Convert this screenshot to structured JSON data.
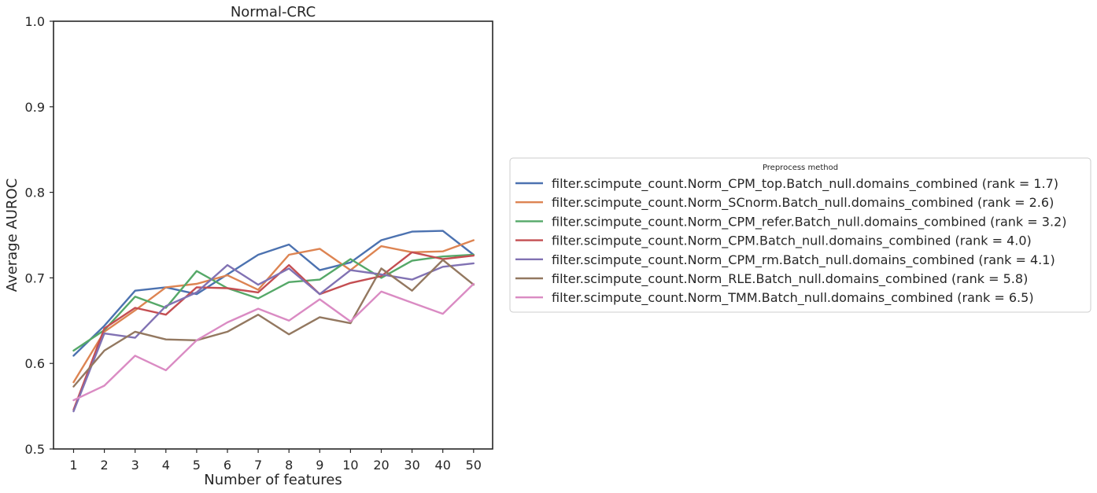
{
  "chart_data": {
    "type": "line",
    "title": "Normal-CRC",
    "xlabel": "Number of features",
    "ylabel": "Average AUROC",
    "categories": [
      "1",
      "2",
      "3",
      "4",
      "5",
      "6",
      "7",
      "8",
      "9",
      "10",
      "20",
      "30",
      "40",
      "50"
    ],
    "ylim": [
      0.5,
      1.0
    ],
    "yticks": [
      "0.5",
      "0.6",
      "0.7",
      "0.8",
      "0.9",
      "1.0"
    ],
    "grid": false,
    "legend": {
      "title": "Preprocess method",
      "placement": "right"
    },
    "series": [
      {
        "name": "filter.scimpute_count.Norm_CPM_top.Batch_null.domains_combined (rank = 1.7)",
        "color": "#4c72b0",
        "values": [
          0.609,
          0.644,
          0.685,
          0.689,
          0.681,
          0.704,
          0.727,
          0.739,
          0.709,
          0.718,
          0.744,
          0.754,
          0.755,
          0.727
        ]
      },
      {
        "name": "filter.scimpute_count.Norm_SCnorm.Batch_null.domains_combined (rank = 2.6)",
        "color": "#dd8452",
        "values": [
          0.578,
          0.637,
          0.662,
          0.689,
          0.693,
          0.703,
          0.686,
          0.727,
          0.734,
          0.709,
          0.737,
          0.73,
          0.731,
          0.744
        ]
      },
      {
        "name": "filter.scimpute_count.Norm_CPM_refer.Batch_null.domains_combined (rank = 3.2)",
        "color": "#55a868",
        "values": [
          0.615,
          0.639,
          0.678,
          0.665,
          0.708,
          0.688,
          0.676,
          0.695,
          0.698,
          0.722,
          0.7,
          0.72,
          0.725,
          0.727
        ]
      },
      {
        "name": "filter.scimpute_count.Norm_CPM.Batch_null.domains_combined (rank = 4.0)",
        "color": "#c44e52",
        "values": [
          0.546,
          0.641,
          0.665,
          0.657,
          0.689,
          0.688,
          0.683,
          0.715,
          0.681,
          0.694,
          0.702,
          0.73,
          0.722,
          0.726
        ]
      },
      {
        "name": "filter.scimpute_count.Norm_CPM_rm.Batch_null.domains_combined (rank = 4.1)",
        "color": "#8172b3",
        "values": [
          0.544,
          0.635,
          0.63,
          0.667,
          0.683,
          0.715,
          0.692,
          0.711,
          0.681,
          0.709,
          0.704,
          0.698,
          0.713,
          0.717
        ]
      },
      {
        "name": "filter.scimpute_count.Norm_RLE.Batch_null.domains_combined (rank = 5.8)",
        "color": "#937860",
        "values": [
          0.573,
          0.615,
          0.637,
          0.628,
          0.627,
          0.637,
          0.657,
          0.634,
          0.654,
          0.647,
          0.711,
          0.685,
          0.721,
          0.692
        ]
      },
      {
        "name": "filter.scimpute_count.Norm_TMM.Batch_null.domains_combined (rank = 6.5)",
        "color": "#da8bc3",
        "values": [
          0.557,
          0.574,
          0.609,
          0.592,
          0.627,
          0.648,
          0.664,
          0.65,
          0.675,
          0.649,
          0.684,
          0.671,
          0.658,
          0.693
        ]
      }
    ]
  }
}
